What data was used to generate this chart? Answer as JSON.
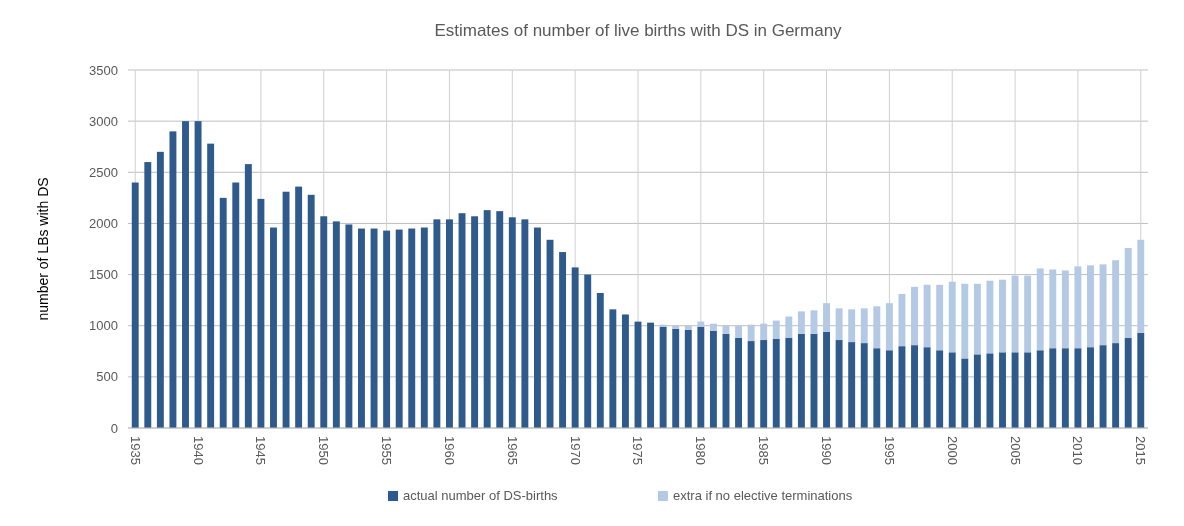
{
  "chart_data": {
    "type": "bar",
    "title": "Estimates of number of live births with DS in Germany",
    "ylabel": "number of LBs with DS",
    "categories": [
      "1935",
      null,
      null,
      null,
      null,
      "1940",
      null,
      null,
      null,
      null,
      "1945",
      null,
      null,
      null,
      null,
      "1950",
      null,
      null,
      null,
      null,
      "1955",
      null,
      null,
      null,
      null,
      "1960",
      null,
      null,
      null,
      null,
      "1965",
      null,
      null,
      null,
      null,
      "1970",
      null,
      null,
      null,
      null,
      "1975",
      null,
      null,
      null,
      null,
      "1980",
      null,
      null,
      null,
      null,
      "1985",
      null,
      null,
      null,
      null,
      "1990",
      null,
      null,
      null,
      null,
      "1995",
      null,
      null,
      null,
      null,
      "2000",
      null,
      null,
      null,
      null,
      "2005",
      null,
      null,
      null,
      null,
      "2010",
      null,
      null,
      null,
      null,
      "2015"
    ],
    "stacked": true,
    "series": [
      {
        "name": "actual number of DS-births",
        "color": "#2f5b8c",
        "values": [
          2400,
          2600,
          2700,
          2900,
          3000,
          3000,
          2780,
          2250,
          2400,
          2580,
          2240,
          1960,
          2310,
          2360,
          2280,
          2070,
          2020,
          1990,
          1950,
          1950,
          1930,
          1940,
          1950,
          1960,
          2040,
          2040,
          2100,
          2070,
          2130,
          2120,
          2060,
          2040,
          1960,
          1840,
          1720,
          1570,
          1500,
          1320,
          1160,
          1110,
          1040,
          1030,
          990,
          970,
          960,
          990,
          950,
          920,
          880,
          850,
          860,
          870,
          880,
          920,
          920,
          940,
          860,
          840,
          830,
          780,
          760,
          800,
          810,
          790,
          760,
          740,
          680,
          720,
          730,
          740,
          740,
          740,
          760,
          780,
          780,
          780,
          790,
          810,
          830,
          880,
          930
        ]
      },
      {
        "name": "extra if no elective terminations",
        "color": "#b4c9e4",
        "values": [
          0,
          0,
          0,
          0,
          0,
          0,
          0,
          0,
          0,
          0,
          0,
          0,
          0,
          0,
          0,
          0,
          0,
          0,
          0,
          0,
          0,
          0,
          0,
          0,
          0,
          0,
          0,
          0,
          0,
          0,
          0,
          0,
          0,
          0,
          0,
          0,
          0,
          0,
          0,
          0,
          0,
          0,
          20,
          30,
          40,
          50,
          70,
          80,
          120,
          160,
          160,
          180,
          210,
          220,
          230,
          280,
          310,
          320,
          340,
          410,
          460,
          510,
          570,
          610,
          640,
          690,
          730,
          690,
          710,
          710,
          750,
          750,
          800,
          770,
          760,
          800,
          800,
          790,
          810,
          880,
          910
        ]
      }
    ],
    "ylim": [
      0,
      3500
    ],
    "yticks": [
      0,
      500,
      1000,
      1500,
      2000,
      2500,
      3000,
      3500
    ],
    "grid": true,
    "legend": "bottom"
  }
}
